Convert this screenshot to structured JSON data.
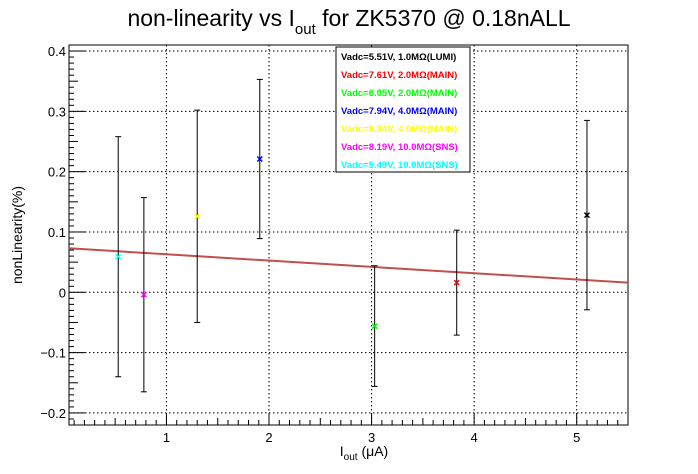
{
  "chart_data": {
    "type": "scatter",
    "title": {
      "prefix": "non-linearity vs I",
      "sub": "out",
      "suffix": " for ZK5370 @ 0.18nALL"
    },
    "xlabel": {
      "prefix": "I",
      "sub": "out",
      "suffix": " (μA)"
    },
    "ylabel": "nonLinearity(%)",
    "xlim": [
      0.05,
      5.5
    ],
    "ylim": [
      -0.22,
      0.41
    ],
    "xticks": [
      {
        "value": 1,
        "label": "1"
      },
      {
        "value": 2,
        "label": "2"
      },
      {
        "value": 3,
        "label": "3"
      },
      {
        "value": 4,
        "label": "4"
      },
      {
        "value": 5,
        "label": "5"
      }
    ],
    "yticks": [
      {
        "value": -0.2,
        "label": "−0.2"
      },
      {
        "value": -0.1,
        "label": "−0.1"
      },
      {
        "value": 0,
        "label": "0"
      },
      {
        "value": 0.1,
        "label": "0.1"
      },
      {
        "value": 0.2,
        "label": "0.2"
      },
      {
        "value": 0.3,
        "label": "0.3"
      },
      {
        "value": 0.4,
        "label": "0.4"
      }
    ],
    "grid": true,
    "legend_position": "top-center",
    "series": [
      {
        "name": "Vadc=5.51V, 1.0MΩ(LUMI)",
        "color": "#000000",
        "points": [
          {
            "x": 5.1,
            "y": 0.128,
            "err": 0.157
          }
        ]
      },
      {
        "name": "Vadc=7.61V, 2.0MΩ(MAIN)",
        "color": "#ff0000",
        "points": [
          {
            "x": 3.83,
            "y": 0.016,
            "err": 0.087
          }
        ]
      },
      {
        "name": "Vadc=6.05V, 2.0MΩ(MAIN)",
        "color": "#00ff00",
        "points": [
          {
            "x": 3.03,
            "y": -0.056,
            "err": 0.1
          }
        ]
      },
      {
        "name": "Vadc=7.94V, 4.0MΩ(MAIN)",
        "color": "#0000ff",
        "points": [
          {
            "x": 1.91,
            "y": 0.221,
            "err": 0.132
          }
        ]
      },
      {
        "name": "Vadc=5.34V, 4.0MΩ(MAIN)",
        "color": "#ffff00",
        "points": [
          {
            "x": 1.3,
            "y": 0.126,
            "err": 0.176
          }
        ]
      },
      {
        "name": "Vadc=8.19V, 10.0MΩ(SNS)",
        "color": "#ff00ff",
        "points": [
          {
            "x": 0.78,
            "y": -0.004,
            "err": 0.161
          }
        ]
      },
      {
        "name": "Vadc=5.49V, 10.0MΩ(SNS)",
        "color": "#00ffff",
        "points": [
          {
            "x": 0.53,
            "y": 0.059,
            "err": 0.199
          }
        ]
      }
    ],
    "fit": {
      "color": "#c0504d",
      "x": [
        0.05,
        5.5
      ],
      "y": [
        0.073,
        0.016
      ]
    }
  }
}
